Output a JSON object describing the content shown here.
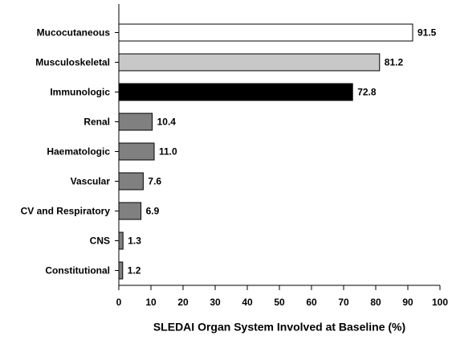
{
  "chart_data": {
    "type": "bar",
    "orientation": "horizontal",
    "x_label": "SLEDAI Organ System Involved at Baseline (%)",
    "categories": [
      "Mucocutaneous",
      "Musculoskeletal",
      "Immunologic",
      "Renal",
      "Haematologic",
      "Vascular",
      "CV and Respiratory",
      "CNS",
      "Constitutional"
    ],
    "values": [
      91.5,
      81.2,
      72.8,
      10.4,
      11.0,
      7.6,
      6.9,
      1.3,
      1.2
    ],
    "value_labels": [
      "91.5",
      "81.2",
      "72.8",
      "10.4",
      "11.0",
      "7.6",
      "6.9",
      "1.3",
      "1.2"
    ],
    "colors": [
      "#ffffff",
      "#c8c8c8",
      "#000000",
      "#808080",
      "#808080",
      "#808080",
      "#808080",
      "#808080",
      "#808080"
    ],
    "xlim": [
      0,
      100
    ],
    "xticks": [
      0,
      10,
      20,
      30,
      40,
      50,
      60,
      70,
      80,
      90,
      100
    ],
    "grid": false
  }
}
